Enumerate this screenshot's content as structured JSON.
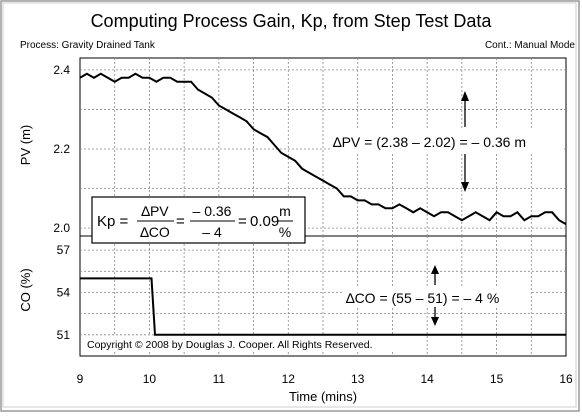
{
  "title": "Computing Process Gain, Kp, from Step Test Data",
  "process_label": "Process: Gravity Drained Tank",
  "controller_label": "Cont.: Manual Mode",
  "copyright": "Copyright © 2008 by Douglas J. Cooper. All Rights Reserved.",
  "colors": {
    "background": "#ffffff",
    "frame": "#999999",
    "grid": "#888888",
    "trace": "#000000"
  },
  "annotations": {
    "dpv": "∆PV = (2.38 – 2.02) = – 0.36 m",
    "dco": "∆CO = (55 – 51) = – 4 %",
    "kp_lhs": "Kp =",
    "kp_num1": "∆PV",
    "kp_den1": "∆CO",
    "kp_eq1": "=",
    "kp_num2": "– 0.36",
    "kp_den2": "– 4",
    "kp_eq2": "=",
    "kp_value": "0.09",
    "kp_unit_num": "m",
    "kp_unit_den": "%"
  },
  "chart_data": [
    {
      "type": "line",
      "ylabel": "PV (m)",
      "xlim": [
        9,
        16
      ],
      "ylim": [
        1.98,
        2.43
      ],
      "yticks": [
        "2.0",
        "2.2",
        "2.4"
      ],
      "grid": true,
      "series": [
        {
          "x": [
            9.0,
            9.1,
            9.2,
            9.3,
            9.4,
            9.5,
            9.6,
            9.7,
            9.8,
            9.9,
            10.0,
            10.1,
            10.2,
            10.3,
            10.4,
            10.5,
            10.6,
            10.7,
            10.8,
            10.9,
            11.0,
            11.1,
            11.2,
            11.3,
            11.4,
            11.5,
            11.6,
            11.7,
            11.8,
            11.9,
            12.0,
            12.1,
            12.2,
            12.3,
            12.4,
            12.5,
            12.6,
            12.7,
            12.8,
            12.9,
            13.0,
            13.1,
            13.2,
            13.3,
            13.4,
            13.5,
            13.6,
            13.7,
            13.8,
            13.9,
            14.0,
            14.1,
            14.2,
            14.3,
            14.4,
            14.5,
            14.6,
            14.7,
            14.8,
            14.9,
            15.0,
            15.1,
            15.2,
            15.3,
            15.4,
            15.5,
            15.6,
            15.7,
            15.8,
            15.9,
            16.0
          ],
          "y": [
            2.38,
            2.39,
            2.38,
            2.39,
            2.38,
            2.37,
            2.38,
            2.38,
            2.39,
            2.38,
            2.38,
            2.37,
            2.38,
            2.38,
            2.37,
            2.37,
            2.37,
            2.35,
            2.34,
            2.33,
            2.31,
            2.3,
            2.29,
            2.28,
            2.27,
            2.25,
            2.24,
            2.23,
            2.21,
            2.19,
            2.18,
            2.17,
            2.15,
            2.14,
            2.13,
            2.12,
            2.11,
            2.1,
            2.08,
            2.08,
            2.07,
            2.07,
            2.06,
            2.06,
            2.05,
            2.05,
            2.06,
            2.05,
            2.04,
            2.05,
            2.04,
            2.03,
            2.04,
            2.04,
            2.03,
            2.02,
            2.03,
            2.04,
            2.03,
            2.02,
            2.04,
            2.03,
            2.03,
            2.04,
            2.02,
            2.03,
            2.03,
            2.04,
            2.04,
            2.02,
            2.01
          ]
        }
      ]
    },
    {
      "type": "line",
      "ylabel": "CO (%)",
      "xlabel": "Time (mins)",
      "xlim": [
        9,
        16
      ],
      "ylim": [
        49.5,
        58
      ],
      "yticks": [
        "51",
        "54",
        "57"
      ],
      "xticks": [
        "9",
        "10",
        "11",
        "12",
        "13",
        "14",
        "15",
        "16"
      ],
      "grid": true,
      "series": [
        {
          "x": [
            9.0,
            10.03,
            10.08,
            16.0
          ],
          "y": [
            55,
            55,
            51,
            51
          ]
        }
      ]
    }
  ]
}
